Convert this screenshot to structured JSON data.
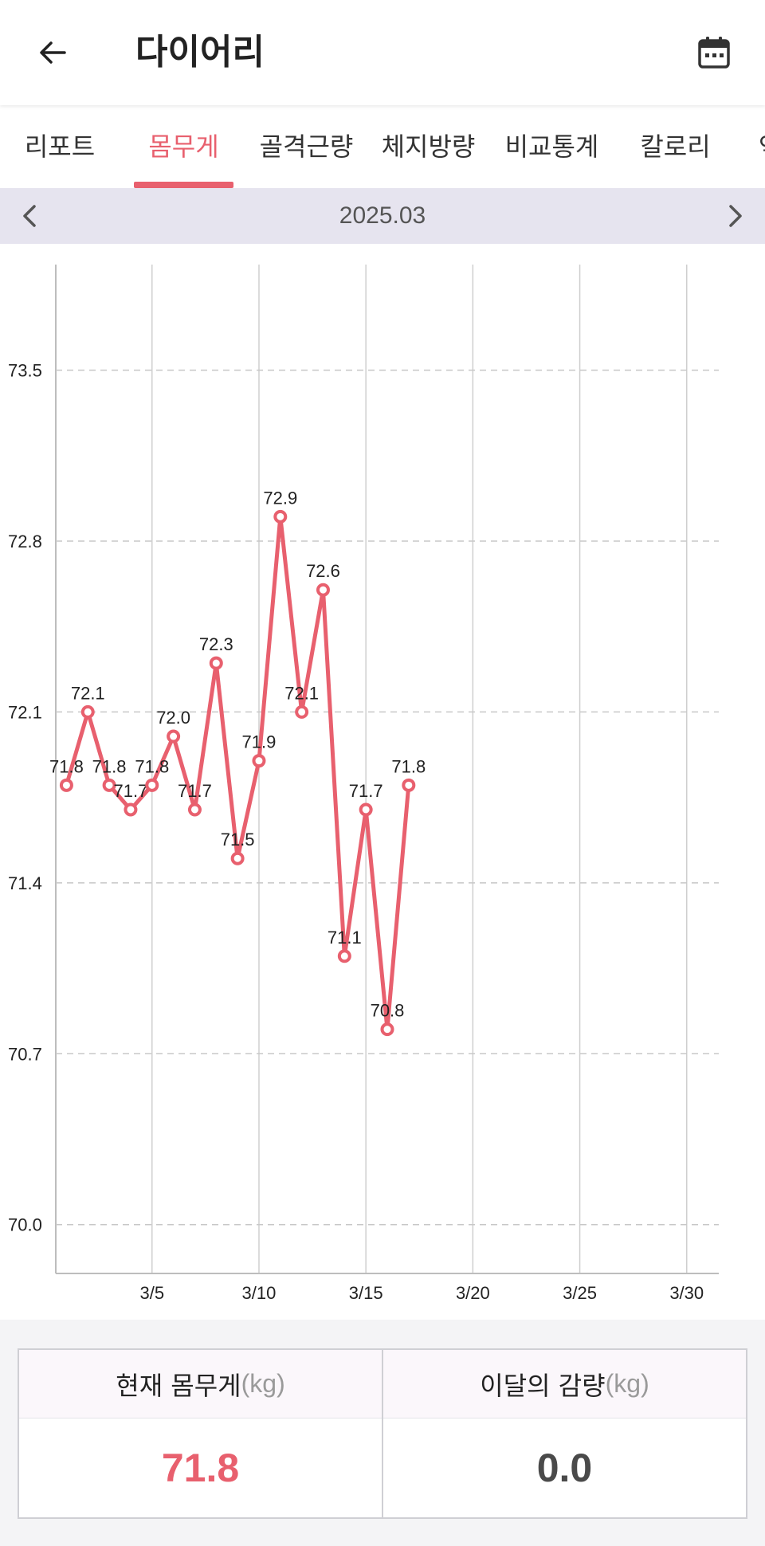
{
  "header": {
    "title": "다이어리",
    "back_icon": "arrow-left-icon",
    "calendar_icon": "calendar-icon"
  },
  "tabs": [
    {
      "label": "리포트",
      "active": false
    },
    {
      "label": "몸무게",
      "active": true
    },
    {
      "label": "골격근량",
      "active": false
    },
    {
      "label": "체지방량",
      "active": false
    },
    {
      "label": "비교통계",
      "active": false
    },
    {
      "label": "칼로리",
      "active": false
    },
    {
      "label": "역",
      "active": false
    }
  ],
  "month_nav": {
    "label": "2025.03",
    "prev_icon": "chevron-left-icon",
    "next_icon": "chevron-right-icon"
  },
  "colors": {
    "accent": "#e8606e",
    "month_bar": "#e6e4ef"
  },
  "chart_data": {
    "type": "line",
    "title": "",
    "xlabel": "",
    "ylabel": "",
    "x_ticks": [
      {
        "day": 5,
        "label": "3/5"
      },
      {
        "day": 10,
        "label": "3/10"
      },
      {
        "day": 15,
        "label": "3/15"
      },
      {
        "day": 20,
        "label": "3/20"
      },
      {
        "day": 25,
        "label": "3/25"
      },
      {
        "day": 30,
        "label": "3/30"
      }
    ],
    "xlim": [
      0.5,
      31.5
    ],
    "y_ticks": [
      "70.0",
      "70.7",
      "71.4",
      "72.1",
      "72.8",
      "73.5"
    ],
    "ylim": [
      69.8,
      73.9
    ],
    "grid": true,
    "series": [
      {
        "points": [
          {
            "day": 1,
            "value": 71.8,
            "label": "71.8"
          },
          {
            "day": 2,
            "value": 72.1,
            "label": "72.1"
          },
          {
            "day": 3,
            "value": 71.8,
            "label": "71.8"
          },
          {
            "day": 4,
            "value": 71.7,
            "label": "71.7"
          },
          {
            "day": 5,
            "value": 71.8,
            "label": "71.8"
          },
          {
            "day": 6,
            "value": 72.0,
            "label": "72.0"
          },
          {
            "day": 7,
            "value": 71.7,
            "label": "71.7"
          },
          {
            "day": 8,
            "value": 72.3,
            "label": "72.3"
          },
          {
            "day": 9,
            "value": 71.5,
            "label": "71.5"
          },
          {
            "day": 10,
            "value": 71.9,
            "label": "71.9"
          },
          {
            "day": 11,
            "value": 72.9,
            "label": "72.9"
          },
          {
            "day": 12,
            "value": 72.1,
            "label": "72.1"
          },
          {
            "day": 13,
            "value": 72.6,
            "label": "72.6"
          },
          {
            "day": 14,
            "value": 71.1,
            "label": "71.1"
          },
          {
            "day": 15,
            "value": 71.7,
            "label": "71.7"
          },
          {
            "day": 16,
            "value": 70.8,
            "label": "70.8"
          },
          {
            "day": 17,
            "value": 71.8,
            "label": "71.8"
          }
        ]
      }
    ]
  },
  "summary": {
    "current": {
      "label": "현재 몸무게",
      "unit": "(kg)",
      "value": "71.8"
    },
    "change": {
      "label": "이달의 감량",
      "unit": "(kg)",
      "value": "0.0"
    }
  }
}
